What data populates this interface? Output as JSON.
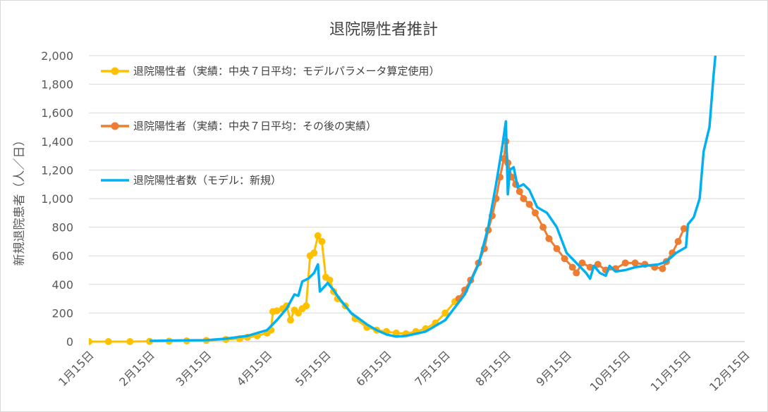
{
  "chart_data": {
    "type": "line",
    "title": "退院陽性者推計",
    "ylabel": "新規退院患者（人／日）",
    "xlabel": "",
    "ylim": [
      0,
      2000
    ],
    "yticks": [
      0,
      200,
      400,
      600,
      800,
      1000,
      1200,
      1400,
      1600,
      1800,
      2000
    ],
    "ytick_labels": [
      "0",
      "200",
      "400",
      "600",
      "800",
      "1,000",
      "1,200",
      "1,400",
      "1,600",
      "1,800",
      "2,000"
    ],
    "xlim": [
      "2020-01-15",
      "2020-12-15"
    ],
    "xtick_labels": [
      "1月15日",
      "2月15日",
      "3月15日",
      "4月15日",
      "5月15日",
      "6月15日",
      "7月15日",
      "8月15日",
      "9月15日",
      "10月15日",
      "11月15日",
      "12月15日"
    ],
    "xtick_dates": [
      "2020-01-15",
      "2020-02-15",
      "2020-03-15",
      "2020-04-15",
      "2020-05-15",
      "2020-06-15",
      "2020-07-15",
      "2020-08-15",
      "2020-09-15",
      "2020-10-15",
      "2020-11-15",
      "2020-12-15"
    ],
    "grid": true,
    "legend": "top-left",
    "series": [
      {
        "name": "退院陽性者（実績：中央７日平均：モデルパラメータ算定使用）",
        "color": "#FFC000",
        "style": "line-markers",
        "points": [
          [
            "2020-01-15",
            0
          ],
          [
            "2020-01-25",
            0
          ],
          [
            "2020-02-05",
            0
          ],
          [
            "2020-02-15",
            2
          ],
          [
            "2020-02-25",
            3
          ],
          [
            "2020-03-05",
            5
          ],
          [
            "2020-03-15",
            8
          ],
          [
            "2020-03-25",
            15
          ],
          [
            "2020-04-01",
            20
          ],
          [
            "2020-04-05",
            30
          ],
          [
            "2020-04-10",
            40
          ],
          [
            "2020-04-15",
            60
          ],
          [
            "2020-04-17",
            80
          ],
          [
            "2020-04-18",
            210
          ],
          [
            "2020-04-20",
            215
          ],
          [
            "2020-04-23",
            230
          ],
          [
            "2020-04-25",
            250
          ],
          [
            "2020-04-27",
            150
          ],
          [
            "2020-04-29",
            220
          ],
          [
            "2020-05-01",
            200
          ],
          [
            "2020-05-03",
            230
          ],
          [
            "2020-05-05",
            250
          ],
          [
            "2020-05-07",
            600
          ],
          [
            "2020-05-09",
            620
          ],
          [
            "2020-05-11",
            740
          ],
          [
            "2020-05-13",
            700
          ],
          [
            "2020-05-15",
            450
          ],
          [
            "2020-05-17",
            430
          ],
          [
            "2020-05-19",
            350
          ],
          [
            "2020-05-21",
            300
          ],
          [
            "2020-05-25",
            250
          ],
          [
            "2020-05-30",
            160
          ],
          [
            "2020-06-05",
            100
          ],
          [
            "2020-06-10",
            80
          ],
          [
            "2020-06-15",
            70
          ],
          [
            "2020-06-20",
            60
          ],
          [
            "2020-06-25",
            55
          ],
          [
            "2020-06-30",
            70
          ],
          [
            "2020-07-05",
            90
          ],
          [
            "2020-07-10",
            130
          ],
          [
            "2020-07-15",
            200
          ],
          [
            "2020-07-20",
            280
          ],
          [
            "2020-07-22",
            300
          ]
        ]
      },
      {
        "name": "退院陽性者（実績：中央７日平均：その後の実績）",
        "color": "#ED7D31",
        "style": "line-markers",
        "points": [
          [
            "2020-07-22",
            300
          ],
          [
            "2020-07-25",
            360
          ],
          [
            "2020-07-28",
            430
          ],
          [
            "2020-08-01",
            550
          ],
          [
            "2020-08-04",
            650
          ],
          [
            "2020-08-06",
            780
          ],
          [
            "2020-08-08",
            880
          ],
          [
            "2020-08-10",
            1000
          ],
          [
            "2020-08-12",
            1150
          ],
          [
            "2020-08-14",
            1280
          ],
          [
            "2020-08-15",
            1400
          ],
          [
            "2020-08-16",
            1250
          ],
          [
            "2020-08-18",
            1150
          ],
          [
            "2020-08-20",
            1100
          ],
          [
            "2020-08-22",
            1050
          ],
          [
            "2020-08-24",
            1000
          ],
          [
            "2020-08-27",
            960
          ],
          [
            "2020-08-30",
            900
          ],
          [
            "2020-09-03",
            800
          ],
          [
            "2020-09-06",
            720
          ],
          [
            "2020-09-10",
            650
          ],
          [
            "2020-09-14",
            580
          ],
          [
            "2020-09-18",
            520
          ],
          [
            "2020-09-20",
            480
          ],
          [
            "2020-09-23",
            550
          ],
          [
            "2020-09-27",
            520
          ],
          [
            "2020-10-01",
            540
          ],
          [
            "2020-10-05",
            500
          ],
          [
            "2020-10-10",
            510
          ],
          [
            "2020-10-15",
            550
          ],
          [
            "2020-10-20",
            550
          ],
          [
            "2020-10-25",
            540
          ],
          [
            "2020-10-30",
            520
          ],
          [
            "2020-11-03",
            510
          ],
          [
            "2020-11-05",
            560
          ],
          [
            "2020-11-08",
            620
          ],
          [
            "2020-11-11",
            700
          ],
          [
            "2020-11-14",
            790
          ]
        ]
      },
      {
        "name": "退院陽性者数（モデル：新規）",
        "color": "#00B0F0",
        "style": "line",
        "points": [
          [
            "2020-02-15",
            5
          ],
          [
            "2020-03-01",
            8
          ],
          [
            "2020-03-15",
            10
          ],
          [
            "2020-03-25",
            20
          ],
          [
            "2020-04-05",
            40
          ],
          [
            "2020-04-15",
            80
          ],
          [
            "2020-04-20",
            150
          ],
          [
            "2020-04-25",
            230
          ],
          [
            "2020-04-29",
            330
          ],
          [
            "2020-05-01",
            320
          ],
          [
            "2020-05-03",
            420
          ],
          [
            "2020-05-06",
            440
          ],
          [
            "2020-05-09",
            480
          ],
          [
            "2020-05-11",
            540
          ],
          [
            "2020-05-12",
            350
          ],
          [
            "2020-05-14",
            380
          ],
          [
            "2020-05-16",
            410
          ],
          [
            "2020-05-19",
            360
          ],
          [
            "2020-05-22",
            300
          ],
          [
            "2020-05-28",
            200
          ],
          [
            "2020-06-05",
            120
          ],
          [
            "2020-06-10",
            80
          ],
          [
            "2020-06-15",
            50
          ],
          [
            "2020-06-20",
            35
          ],
          [
            "2020-06-25",
            40
          ],
          [
            "2020-07-05",
            70
          ],
          [
            "2020-07-15",
            150
          ],
          [
            "2020-07-25",
            330
          ],
          [
            "2020-08-01",
            540
          ],
          [
            "2020-08-06",
            800
          ],
          [
            "2020-08-10",
            1100
          ],
          [
            "2020-08-13",
            1350
          ],
          [
            "2020-08-15",
            1540
          ],
          [
            "2020-08-16",
            1030
          ],
          [
            "2020-08-17",
            1200
          ],
          [
            "2020-08-19",
            1220
          ],
          [
            "2020-08-21",
            1080
          ],
          [
            "2020-08-24",
            1100
          ],
          [
            "2020-08-27",
            1060
          ],
          [
            "2020-08-31",
            940
          ],
          [
            "2020-09-05",
            900
          ],
          [
            "2020-09-10",
            800
          ],
          [
            "2020-09-15",
            620
          ],
          [
            "2020-09-20",
            550
          ],
          [
            "2020-09-25",
            480
          ],
          [
            "2020-09-27",
            440
          ],
          [
            "2020-09-29",
            530
          ],
          [
            "2020-10-02",
            480
          ],
          [
            "2020-10-05",
            460
          ],
          [
            "2020-10-07",
            530
          ],
          [
            "2020-10-10",
            490
          ],
          [
            "2020-10-15",
            500
          ],
          [
            "2020-10-20",
            520
          ],
          [
            "2020-10-25",
            530
          ],
          [
            "2020-11-01",
            540
          ],
          [
            "2020-11-05",
            560
          ],
          [
            "2020-11-10",
            620
          ],
          [
            "2020-11-15",
            660
          ],
          [
            "2020-11-16",
            820
          ],
          [
            "2020-11-19",
            870
          ],
          [
            "2020-11-22",
            1000
          ],
          [
            "2020-11-24",
            1330
          ],
          [
            "2020-11-27",
            1500
          ],
          [
            "2020-11-29",
            1850
          ],
          [
            "2020-11-30",
            2000
          ]
        ]
      }
    ]
  }
}
